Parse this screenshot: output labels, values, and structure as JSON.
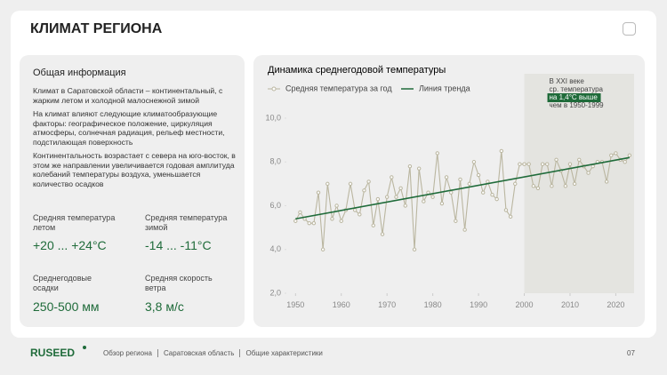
{
  "header": {
    "title": "КЛИМАТ РЕГИОНА"
  },
  "info": {
    "title": "Общая информация",
    "paragraphs": [
      "Климат в Саратовской области – континентальный, с жарким летом и холодной малоснежной зимой",
      "На климат влияют следующие климатообразующие факторы: географическое положение, циркуляция атмосферы, солнечная радиация, рельеф местности, подстилающая поверхность",
      "Континентальность возрастает с севера на юго-восток, в этом же направлении увеличивается годовая амплитуда колебаний температуры воздуха, уменьшается количество осадков"
    ],
    "stats": [
      {
        "label": "Средняя температура летом",
        "value": "+20 ... +24°С"
      },
      {
        "label": "Средняя температура зимой",
        "value": "-14 ... -11°С"
      },
      {
        "label": "Среднегодовые осадки",
        "value": "250-500 мм"
      },
      {
        "label": "Средняя скорость ветра",
        "value": "3,8 м/с"
      }
    ]
  },
  "chart_data": {
    "type": "line",
    "title": "Динамика среднегодовой температуры",
    "x": [
      1950,
      1951,
      1952,
      1953,
      1954,
      1955,
      1956,
      1957,
      1958,
      1959,
      1960,
      1961,
      1962,
      1963,
      1964,
      1965,
      1966,
      1967,
      1968,
      1969,
      1970,
      1971,
      1972,
      1973,
      1974,
      1975,
      1976,
      1977,
      1978,
      1979,
      1980,
      1981,
      1982,
      1983,
      1984,
      1985,
      1986,
      1987,
      1988,
      1989,
      1990,
      1991,
      1992,
      1993,
      1994,
      1995,
      1996,
      1997,
      1998,
      1999,
      2000,
      2001,
      2002,
      2003,
      2004,
      2005,
      2006,
      2007,
      2008,
      2009,
      2010,
      2011,
      2012,
      2013,
      2014,
      2015,
      2016,
      2017,
      2018,
      2019,
      2020,
      2021,
      2022,
      2023
    ],
    "series": [
      {
        "name": "Средняя температура за год",
        "color": "#bab6a0",
        "values": [
          5.3,
          5.7,
          5.4,
          5.2,
          5.2,
          6.6,
          4.0,
          7.0,
          5.4,
          6.0,
          5.3,
          5.8,
          7.0,
          5.8,
          5.6,
          6.7,
          7.1,
          5.1,
          6.3,
          4.7,
          6.4,
          7.3,
          6.4,
          6.8,
          6.0,
          7.8,
          4.0,
          7.7,
          6.2,
          6.6,
          6.4,
          8.4,
          6.1,
          7.3,
          6.6,
          5.3,
          7.2,
          4.9,
          7.0,
          8.0,
          7.4,
          6.6,
          7.1,
          6.5,
          6.3,
          8.5,
          5.8,
          5.5,
          7.0,
          7.9,
          7.9,
          7.9,
          6.9,
          6.8,
          7.9,
          7.9,
          6.9,
          8.1,
          7.6,
          6.9,
          7.9,
          7.0,
          8.1,
          7.8,
          7.5,
          7.8,
          8.0,
          8.0,
          7.1,
          8.3,
          8.4,
          8.1,
          8.0,
          8.3
        ]
      },
      {
        "name": "Линия тренда",
        "color": "#1f6b3a",
        "x": [
          1950,
          2023
        ],
        "values": [
          5.4,
          8.2
        ]
      }
    ],
    "xlim": [
      1948,
      2024
    ],
    "xticks": [
      1950,
      1960,
      1970,
      1980,
      1990,
      2000,
      2010,
      2020
    ],
    "ylim": [
      2,
      10
    ],
    "yticks": [
      {
        "value": 2,
        "label": "2,0"
      },
      {
        "value": 4,
        "label": "4,0"
      },
      {
        "value": 6,
        "label": "6,0"
      },
      {
        "value": 8,
        "label": "8,0"
      },
      {
        "value": 10,
        "label": "10,0"
      }
    ],
    "highlight": {
      "from": 2000,
      "to": 2024,
      "color": "#e4e4e0",
      "lines": [
        "В XXI веке",
        "ср. температура",
        "на 1,4°С выше",
        "чем в 1950-1999"
      ]
    }
  },
  "footer": {
    "logo": "RUSEED",
    "breadcrumbs": [
      "Обзор региона",
      "Саратовская область",
      "Общие характеристики"
    ],
    "page": "07"
  }
}
